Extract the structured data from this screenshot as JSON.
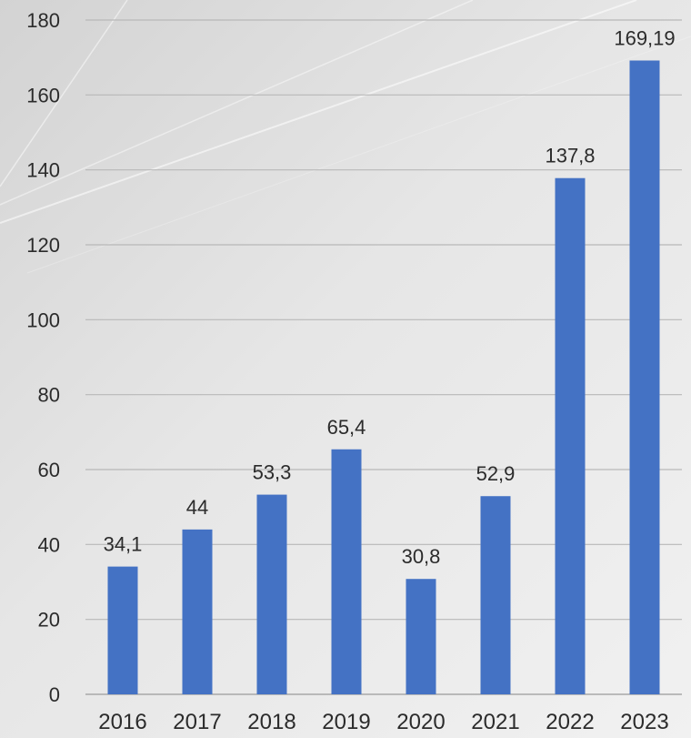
{
  "chart_data": {
    "type": "bar",
    "categories": [
      "2016",
      "2017",
      "2018",
      "2019",
      "2020",
      "2021",
      "2022",
      "2023"
    ],
    "values": [
      34.1,
      44,
      53.3,
      65.4,
      30.8,
      52.9,
      137.8,
      169.19
    ],
    "data_labels": [
      "34,1",
      "44",
      "53,3",
      "65,4",
      "30,8",
      "52,9",
      "137,8",
      "169,19"
    ],
    "yticks": [
      "0",
      "20",
      "40",
      "60",
      "80",
      "100",
      "120",
      "140",
      "160",
      "180"
    ],
    "ylim": [
      0,
      180
    ],
    "grid": true,
    "title": "",
    "xlabel": "",
    "ylabel": "",
    "colors": {
      "bar": "#4472c4",
      "grid": "#b8b8b8",
      "text": "#2b2b2b"
    }
  }
}
